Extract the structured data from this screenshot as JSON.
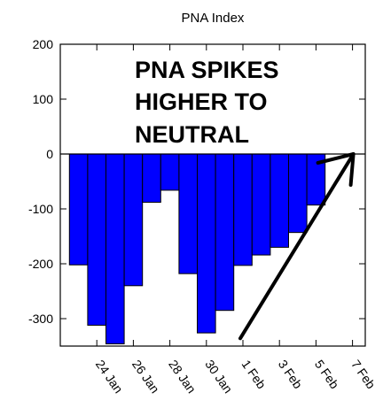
{
  "chart_data": {
    "type": "bar",
    "title": "PNA Index",
    "xlabel": "",
    "ylabel": "",
    "ylim": [
      -350,
      200
    ],
    "yticks": [
      200,
      100,
      0,
      -100,
      -200,
      -300
    ],
    "x_start": "2015-01-22",
    "x_end": "2015-02-08",
    "xtick_dates": [
      "2015-01-24",
      "2015-01-26",
      "2015-01-28",
      "2015-01-30",
      "2015-02-01",
      "2015-02-03",
      "2015-02-05",
      "2015-02-07"
    ],
    "xtick_labels": [
      "24 Jan",
      "26 Jan",
      "28 Jan",
      "30 Jan",
      "1 Feb",
      "3 Feb",
      "5 Feb",
      "7 Feb"
    ],
    "dates": [
      "2015-01-23",
      "2015-01-24",
      "2015-01-25",
      "2015-01-26",
      "2015-01-27",
      "2015-01-28",
      "2015-01-29",
      "2015-01-30",
      "2015-01-31",
      "2015-02-01",
      "2015-02-02",
      "2015-02-03",
      "2015-02-04",
      "2015-02-05",
      "2015-02-06",
      "2015-02-07"
    ],
    "values": [
      -202,
      -312,
      -346,
      -240,
      -88,
      -66,
      -218,
      -326,
      -285,
      -203,
      -184,
      -170,
      -143,
      -93,
      0,
      0
    ],
    "bar_color": "#0000ff",
    "annotation": [
      "PNA SPIKES",
      "HIGHER TO",
      "NEUTRAL"
    ],
    "arrow": {
      "from": {
        "date": "2015-02-01",
        "value": -336
      },
      "to": {
        "date": "2015-02-07",
        "value": 0
      },
      "color": "#000000"
    }
  }
}
